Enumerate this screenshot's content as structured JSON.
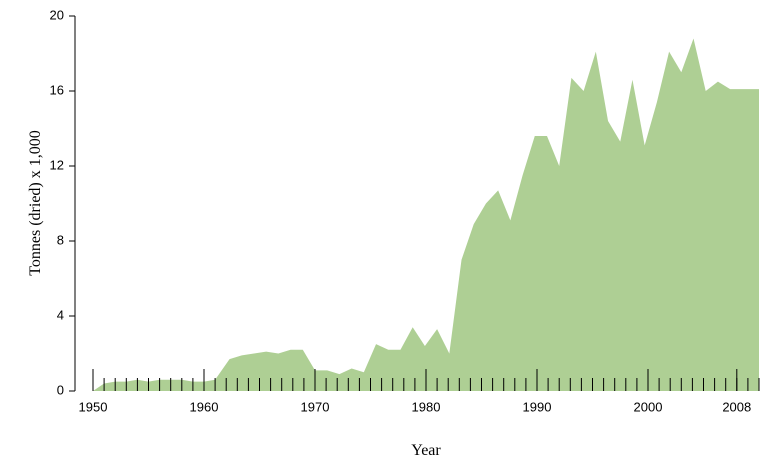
{
  "chart_data": {
    "type": "area",
    "x_label": "Year",
    "y_label": "Tonnes (dried) x 1,000",
    "x": [
      1950,
      1951,
      1952,
      1953,
      1954,
      1955,
      1956,
      1957,
      1958,
      1959,
      1960,
      1961,
      1962.3,
      1963.4,
      1964.5,
      1965.6,
      1966.7,
      1967.8,
      1968.9,
      1970,
      1971.1,
      1972.2,
      1973.3,
      1974.4,
      1975.5,
      1976.6,
      1977.7,
      1978.8,
      1979.9,
      1981,
      1982.1,
      1983.2,
      1984.3,
      1985.4,
      1986.5,
      1987.6,
      1988.7,
      1989.8,
      1990.9,
      1992,
      1993.1,
      1994.2,
      1995.3,
      1996.4,
      1997.5,
      1998.6,
      1999.7,
      2000.8,
      2001.9,
      2003,
      2004.1,
      2005.2,
      2006.3,
      2007.4,
      2008.5,
      2010
    ],
    "values": [
      0,
      0.4,
      0.5,
      0.5,
      0.6,
      0.5,
      0.6,
      0.6,
      0.6,
      0.5,
      0.5,
      0.6,
      1.7,
      1.9,
      2.0,
      2.1,
      2.0,
      2.2,
      2.2,
      1.1,
      1.1,
      0.9,
      1.2,
      1.0,
      2.5,
      2.2,
      2.2,
      3.4,
      2.4,
      3.3,
      2.0,
      7.0,
      8.9,
      10.0,
      10.7,
      9.1,
      11.5,
      13.6,
      13.6,
      12.0,
      16.7,
      16.0,
      18.1,
      14.4,
      13.3,
      16.6,
      13.1,
      15.4,
      18.1,
      17.0,
      18.8,
      16.0,
      16.5,
      16.1,
      16.1,
      16.1
    ],
    "color": "#aecf94",
    "xlim": [
      1950,
      2010
    ],
    "xticks": [
      1950,
      1960,
      1970,
      1980,
      1990,
      2000,
      2008
    ],
    "ylim": [
      0,
      20
    ],
    "yticks": [
      0,
      4,
      8,
      12,
      16,
      20
    ]
  }
}
